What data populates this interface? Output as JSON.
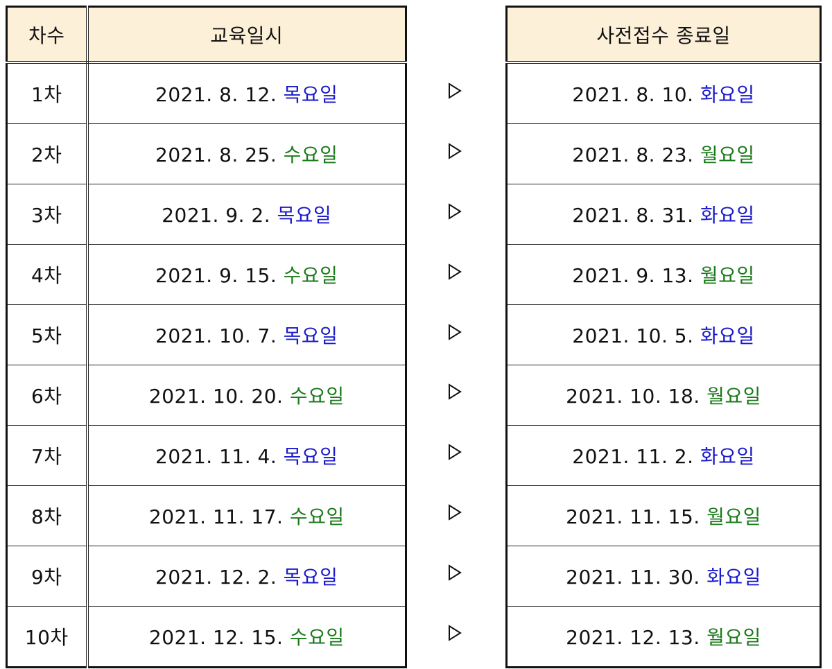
{
  "left_table": {
    "headers": {
      "round": "차수",
      "date": "교육일시"
    },
    "rows": [
      {
        "round": "1차",
        "date": "2021. 8. 12.",
        "day": "목요일",
        "day_color": "blue"
      },
      {
        "round": "2차",
        "date": "2021. 8. 25.",
        "day": "수요일",
        "day_color": "green"
      },
      {
        "round": "3차",
        "date": "2021. 9. 2.",
        "day": "목요일",
        "day_color": "blue"
      },
      {
        "round": "4차",
        "date": "2021. 9. 15.",
        "day": "수요일",
        "day_color": "green"
      },
      {
        "round": "5차",
        "date": "2021. 10. 7.",
        "day": "목요일",
        "day_color": "blue"
      },
      {
        "round": "6차",
        "date": "2021. 10. 20.",
        "day": "수요일",
        "day_color": "green"
      },
      {
        "round": "7차",
        "date": "2021. 11. 4.",
        "day": "목요일",
        "day_color": "blue"
      },
      {
        "round": "8차",
        "date": "2021. 11. 17.",
        "day": "수요일",
        "day_color": "green"
      },
      {
        "round": "9차",
        "date": "2021. 12. 2. ",
        "day": "목요일",
        "day_color": "blue"
      },
      {
        "round": "10차",
        "date": "2021. 12. 15.",
        "day": "수요일",
        "day_color": "green"
      }
    ]
  },
  "right_table": {
    "header": "사전접수 종료일",
    "rows": [
      {
        "date": "2021. 8. 10.",
        "day": "화요일",
        "day_color": "blue"
      },
      {
        "date": "2021. 8. 23.",
        "day": "월요일",
        "day_color": "green"
      },
      {
        "date": "2021. 8. 31.",
        "day": "화요일",
        "day_color": "blue"
      },
      {
        "date": "2021. 9. 13.",
        "day": "월요일",
        "day_color": "green"
      },
      {
        "date": "2021. 10. 5.",
        "day": "화요일",
        "day_color": "blue"
      },
      {
        "date": "2021. 10. 18.",
        "day": "월요일",
        "day_color": "green"
      },
      {
        "date": "2021. 11. 2.",
        "day": "화요일",
        "day_color": "blue"
      },
      {
        "date": "2021. 11. 15.",
        "day": "월요일",
        "day_color": "green"
      },
      {
        "date": "2021. 11. 30. ",
        "day": "화요일",
        "day_color": "blue"
      },
      {
        "date": "2021. 12. 13.",
        "day": "월요일",
        "day_color": "green"
      }
    ]
  },
  "arrow_icon": "triangle-right-outline-icon",
  "colors": {
    "blue": "#1a1acc",
    "green": "#1a7a1a",
    "header_bg": "#fdf0d8"
  }
}
